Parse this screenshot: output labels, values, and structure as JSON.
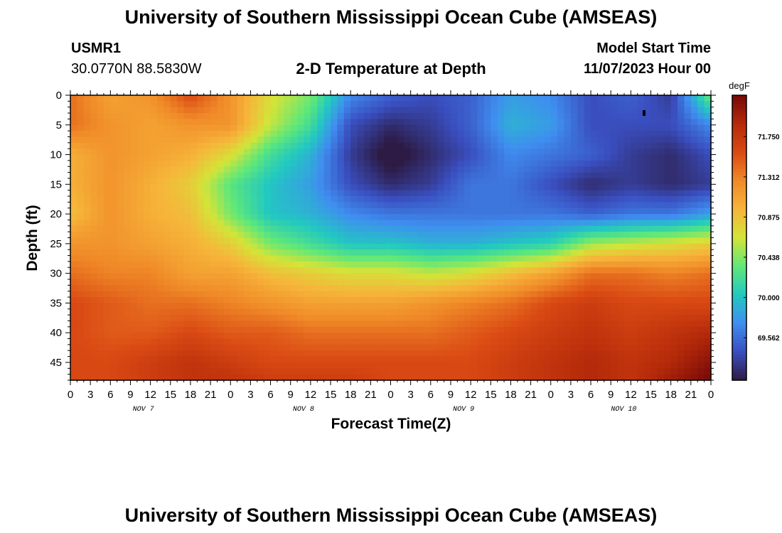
{
  "header": {
    "title": "University of Southern Mississippi Ocean Cube (AMSEAS)",
    "station_id": "USMR1",
    "station_coords": "30.0770N  88.5830W",
    "plot_subtitle": "2-D Temperature at Depth",
    "model_start_label": "Model Start Time",
    "model_start_value": "11/07/2023 Hour 00"
  },
  "footer": {
    "title_repeat": "University of Southern Mississippi Ocean Cube (AMSEAS)"
  },
  "chart_data": {
    "type": "heatmap",
    "xlabel": "Forecast Time(Z)",
    "ylabel": "Depth (ft)",
    "x_tick_labels": [
      "0",
      "3",
      "6",
      "9",
      "12",
      "15",
      "18",
      "21",
      "0",
      "3",
      "6",
      "9",
      "12",
      "15",
      "18",
      "21",
      "0",
      "3",
      "6",
      "9",
      "12",
      "15",
      "18",
      "21",
      "0",
      "3",
      "6",
      "9",
      "12",
      "15",
      "18",
      "21",
      "0"
    ],
    "x_date_labels": [
      "NOV 7",
      "NOV 8",
      "NOV 9",
      "NOV 10"
    ],
    "x_range_hours": [
      0,
      96
    ],
    "y_ticks": [
      0,
      5,
      10,
      15,
      20,
      25,
      30,
      35,
      40,
      45
    ],
    "y_range_ft": [
      0,
      48
    ],
    "y_reversed": true,
    "colorbar": {
      "unit": "degF",
      "tick_labels": [
        "71.750",
        "71.312",
        "70.875",
        "70.438",
        "70.000",
        "69.562"
      ],
      "tick_values": [
        71.75,
        71.312,
        70.875,
        70.438,
        70.0,
        69.562
      ],
      "range": [
        69.1,
        72.2
      ],
      "colors": [
        "#2d1b45",
        "#3a4fc0",
        "#3f8ef0",
        "#22c9c0",
        "#60e878",
        "#d4e438",
        "#f6b53a",
        "#f08a28",
        "#da4a14",
        "#b52a0a",
        "#760808"
      ]
    },
    "data_grid": {
      "hours": [
        0,
        6,
        12,
        18,
        24,
        30,
        36,
        42,
        48,
        54,
        60,
        66,
        72,
        78,
        84,
        90,
        96
      ],
      "depths_ft": [
        0,
        5,
        10,
        15,
        20,
        25,
        30,
        35,
        40,
        45,
        48
      ],
      "values": [
        [
          71.4,
          71.1,
          71.2,
          71.6,
          71.2,
          70.7,
          70.4,
          69.7,
          69.5,
          69.4,
          69.5,
          69.8,
          69.7,
          69.4,
          69.5,
          69.3,
          70.4
        ],
        [
          71.4,
          71.2,
          71.1,
          71.2,
          71.2,
          70.6,
          70.2,
          69.4,
          69.2,
          69.3,
          69.5,
          69.9,
          69.8,
          69.4,
          69.4,
          69.4,
          69.7
        ],
        [
          71.0,
          71.2,
          71.1,
          71.0,
          70.7,
          70.2,
          69.9,
          69.3,
          69.0,
          69.2,
          69.4,
          69.7,
          69.6,
          69.5,
          69.3,
          69.2,
          69.4
        ],
        [
          71.0,
          71.2,
          71.0,
          70.8,
          70.3,
          70.0,
          69.8,
          69.4,
          69.2,
          69.3,
          69.6,
          69.6,
          69.4,
          69.2,
          69.3,
          69.2,
          69.3
        ],
        [
          70.9,
          71.2,
          71.0,
          70.9,
          70.4,
          70.0,
          69.9,
          69.7,
          69.6,
          69.6,
          69.6,
          69.6,
          69.6,
          69.5,
          69.6,
          69.6,
          69.8
        ],
        [
          71.2,
          71.2,
          71.1,
          71.0,
          70.8,
          70.4,
          70.2,
          70.0,
          70.0,
          69.9,
          69.9,
          70.0,
          70.1,
          70.5,
          70.6,
          70.7,
          70.8
        ],
        [
          71.4,
          71.3,
          71.3,
          71.1,
          71.1,
          70.9,
          70.8,
          70.7,
          70.7,
          70.6,
          70.7,
          70.9,
          71.1,
          71.4,
          71.4,
          71.3,
          71.4
        ],
        [
          71.6,
          71.5,
          71.4,
          71.4,
          71.3,
          71.2,
          71.1,
          71.1,
          71.1,
          71.2,
          71.3,
          71.4,
          71.6,
          71.7,
          71.6,
          71.6,
          71.6
        ],
        [
          71.6,
          71.5,
          71.5,
          71.6,
          71.5,
          71.5,
          71.4,
          71.4,
          71.4,
          71.4,
          71.5,
          71.6,
          71.7,
          71.8,
          71.7,
          71.8,
          71.9
        ],
        [
          71.6,
          71.6,
          71.7,
          71.8,
          71.7,
          71.6,
          71.6,
          71.6,
          71.6,
          71.6,
          71.6,
          71.7,
          71.8,
          71.9,
          71.8,
          71.9,
          72.1
        ],
        [
          71.6,
          71.6,
          71.7,
          71.8,
          71.8,
          71.7,
          71.7,
          71.7,
          71.6,
          71.6,
          71.6,
          71.7,
          71.8,
          71.9,
          71.8,
          72.0,
          72.2
        ]
      ]
    }
  }
}
